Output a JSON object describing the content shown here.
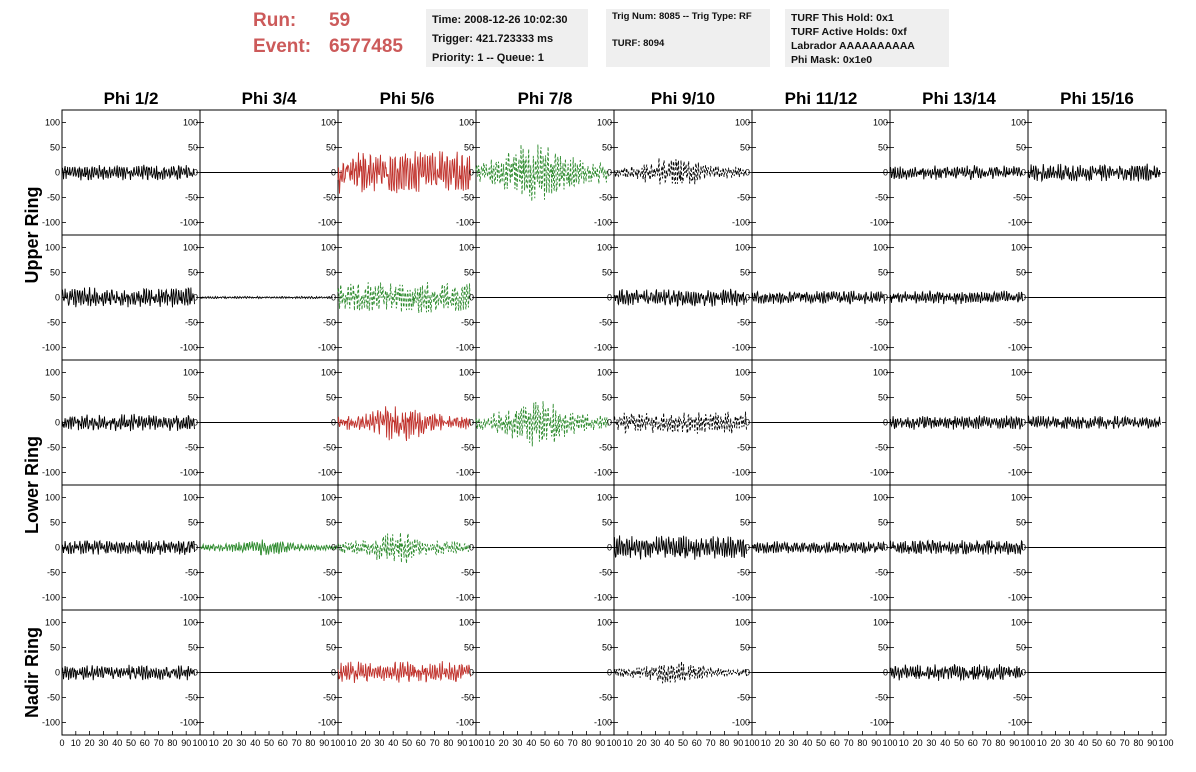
{
  "header": {
    "run_label": "Run:",
    "run_value": "59",
    "event_label": "Event:",
    "event_value": "6577485",
    "time": "Time: 2008-12-26 10:02:30",
    "trigger": "Trigger: 421.723333 ms",
    "priority": "Priority: 1 -- Queue: 1",
    "trig_num": "Trig Num: 8085 -- Trig Type: RF",
    "turf": "TURF: 8094",
    "turf_this_hold": "TURF This Hold: 0x1",
    "turf_active_holds": "TURF Active Holds: 0xf",
    "labrador": "Labrador AAAAAAAAAA",
    "phi_mask": "Phi Mask: 0x1e0"
  },
  "colors": {
    "header_red": "#cc5a5a",
    "black": "#000000",
    "red": "#c0312b",
    "green": "#2e8b2e"
  },
  "chart_data": {
    "type": "line",
    "columns": [
      "Phi 1/2",
      "Phi 3/4",
      "Phi 5/6",
      "Phi 7/8",
      "Phi 9/10",
      "Phi 11/12",
      "Phi 13/14",
      "Phi 15/16"
    ],
    "row_labels": [
      {
        "text": "Upper Ring",
        "rows": [
          0,
          1
        ]
      },
      {
        "text": "Lower Ring",
        "rows": [
          2,
          3
        ]
      },
      {
        "text": "Nadir Ring",
        "rows": [
          4
        ]
      }
    ],
    "ylim": [
      -125,
      125
    ],
    "xlim": [
      0,
      100
    ],
    "y_ticks": [
      "100",
      "50",
      "0",
      "-50",
      "-100"
    ],
    "x_ticks": [
      "0",
      "10",
      "20",
      "30",
      "40",
      "50",
      "60",
      "70",
      "80",
      "90",
      "100"
    ],
    "samples_per_trace": 260,
    "panels": [
      [
        {
          "amp": 14,
          "color": "black",
          "style": "solid",
          "envelope": "flat",
          "end": 96
        },
        {
          "amp": 0,
          "color": "black",
          "style": "solid",
          "envelope": "flat",
          "end": 100
        },
        {
          "amp": 38,
          "color": "red",
          "style": "solid",
          "envelope": "flat",
          "end": 96
        },
        {
          "amp": 60,
          "color": "green",
          "style": "dashed",
          "envelope": "burst",
          "end": 96
        },
        {
          "amp": 30,
          "color": "black",
          "style": "dashed",
          "envelope": "burst",
          "end": 96
        },
        {
          "amp": 0,
          "color": "black",
          "style": "solid",
          "envelope": "flat",
          "end": 100
        },
        {
          "amp": 13,
          "color": "black",
          "style": "solid",
          "envelope": "flat",
          "end": 96
        },
        {
          "amp": 16,
          "color": "black",
          "style": "solid",
          "envelope": "flat",
          "end": 96
        }
      ],
      [
        {
          "amp": 18,
          "color": "black",
          "style": "solid",
          "envelope": "flat",
          "end": 96
        },
        {
          "amp": 2,
          "color": "black",
          "style": "solid",
          "envelope": "flat",
          "end": 96
        },
        {
          "amp": 28,
          "color": "green",
          "style": "dashed",
          "envelope": "flat",
          "end": 96
        },
        {
          "amp": 0,
          "color": "black",
          "style": "solid",
          "envelope": "flat",
          "end": 100
        },
        {
          "amp": 16,
          "color": "black",
          "style": "solid",
          "envelope": "flat",
          "end": 96
        },
        {
          "amp": 12,
          "color": "black",
          "style": "solid",
          "envelope": "flat",
          "end": 96
        },
        {
          "amp": 12,
          "color": "black",
          "style": "solid",
          "envelope": "flat",
          "end": 96
        },
        {
          "amp": 0,
          "color": "black",
          "style": "solid",
          "envelope": "flat",
          "end": 100
        }
      ],
      [
        {
          "amp": 15,
          "color": "black",
          "style": "solid",
          "envelope": "flat",
          "end": 96
        },
        {
          "amp": 0,
          "color": "black",
          "style": "solid",
          "envelope": "flat",
          "end": 100
        },
        {
          "amp": 35,
          "color": "red",
          "style": "solid",
          "envelope": "burst",
          "end": 96
        },
        {
          "amp": 45,
          "color": "green",
          "style": "dashed",
          "envelope": "burst",
          "end": 96
        },
        {
          "amp": 20,
          "color": "black",
          "style": "dashed",
          "envelope": "flat",
          "end": 96
        },
        {
          "amp": 0,
          "color": "black",
          "style": "solid",
          "envelope": "flat",
          "end": 100
        },
        {
          "amp": 13,
          "color": "black",
          "style": "solid",
          "envelope": "flat",
          "end": 96
        },
        {
          "amp": 12,
          "color": "black",
          "style": "solid",
          "envelope": "flat",
          "end": 96
        }
      ],
      [
        {
          "amp": 13,
          "color": "black",
          "style": "solid",
          "envelope": "flat",
          "end": 96
        },
        {
          "amp": 15,
          "color": "green",
          "style": "solid",
          "envelope": "burst",
          "end": 100
        },
        {
          "amp": 30,
          "color": "green",
          "style": "dashed",
          "envelope": "burst",
          "end": 96
        },
        {
          "amp": 0,
          "color": "black",
          "style": "solid",
          "envelope": "flat",
          "end": 100
        },
        {
          "amp": 22,
          "color": "black",
          "style": "solid",
          "envelope": "flat",
          "end": 96
        },
        {
          "amp": 11,
          "color": "black",
          "style": "solid",
          "envelope": "flat",
          "end": 96
        },
        {
          "amp": 13,
          "color": "black",
          "style": "solid",
          "envelope": "flat",
          "end": 96
        },
        {
          "amp": 0,
          "color": "black",
          "style": "solid",
          "envelope": "flat",
          "end": 100
        }
      ],
      [
        {
          "amp": 14,
          "color": "black",
          "style": "solid",
          "envelope": "flat",
          "end": 96
        },
        {
          "amp": 0,
          "color": "black",
          "style": "solid",
          "envelope": "flat",
          "end": 100
        },
        {
          "amp": 20,
          "color": "red",
          "style": "solid",
          "envelope": "flat",
          "end": 96
        },
        {
          "amp": 0,
          "color": "black",
          "style": "solid",
          "envelope": "flat",
          "end": 100
        },
        {
          "amp": 22,
          "color": "black",
          "style": "dashed",
          "envelope": "burst",
          "end": 96
        },
        {
          "amp": 0,
          "color": "black",
          "style": "solid",
          "envelope": "flat",
          "end": 100
        },
        {
          "amp": 15,
          "color": "black",
          "style": "solid",
          "envelope": "flat",
          "end": 96
        },
        {
          "amp": 0,
          "color": "black",
          "style": "solid",
          "envelope": "flat",
          "end": 100
        }
      ]
    ]
  }
}
